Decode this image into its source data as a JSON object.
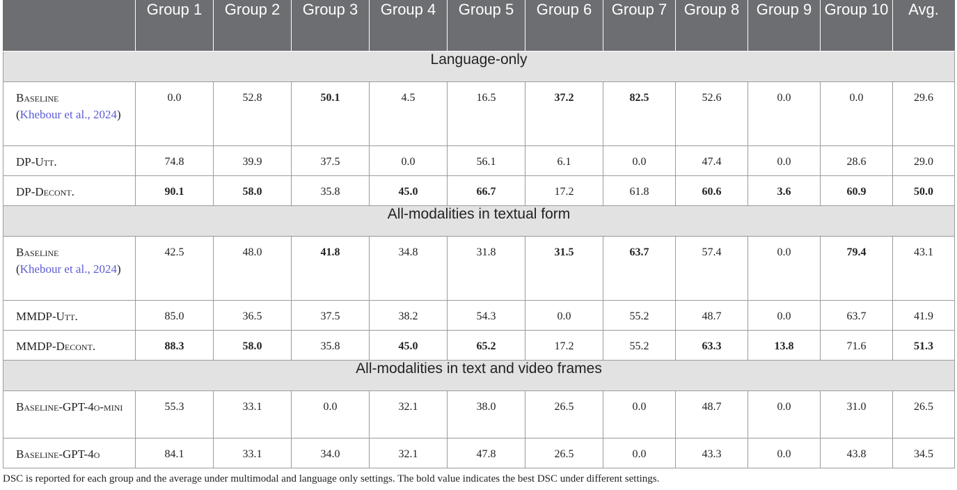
{
  "headers": [
    "",
    "Group 1",
    "Group 2",
    "Group 3",
    "Group 4",
    "Group 5",
    "Group 6",
    "Group 7",
    "Group 8",
    "Group 9",
    "Group 10",
    "Avg."
  ],
  "sections": [
    {
      "title": "Language-only",
      "rows": [
        {
          "label": "Baseline",
          "cite": "Khebour et al., 2024",
          "values": [
            "0.0",
            "52.8",
            "50.1",
            "4.5",
            "16.5",
            "37.2",
            "82.5",
            "52.6",
            "0.0",
            "0.0",
            "29.6"
          ],
          "bold": [
            false,
            false,
            true,
            false,
            false,
            true,
            true,
            false,
            false,
            false,
            false
          ]
        },
        {
          "label": "DP-Utt.",
          "values": [
            "74.8",
            "39.9",
            "37.5",
            "0.0",
            "56.1",
            "6.1",
            "0.0",
            "47.4",
            "0.0",
            "28.6",
            "29.0"
          ],
          "bold": [
            false,
            false,
            false,
            false,
            false,
            false,
            false,
            false,
            false,
            false,
            false
          ]
        },
        {
          "label": "DP-Decont.",
          "values": [
            "90.1",
            "58.0",
            "35.8",
            "45.0",
            "66.7",
            "17.2",
            "61.8",
            "60.6",
            "3.6",
            "60.9",
            "50.0"
          ],
          "bold": [
            true,
            true,
            false,
            true,
            true,
            false,
            false,
            true,
            true,
            true,
            true
          ]
        }
      ]
    },
    {
      "title": "All-modalities in textual form",
      "rows": [
        {
          "label": "Baseline",
          "cite": "Khebour et al., 2024",
          "values": [
            "42.5",
            "48.0",
            "41.8",
            "34.8",
            "31.8",
            "31.5",
            "63.7",
            "57.4",
            "0.0",
            "79.4",
            "43.1"
          ],
          "bold": [
            false,
            false,
            true,
            false,
            false,
            true,
            true,
            false,
            false,
            true,
            false
          ]
        },
        {
          "label": "MMDP-Utt.",
          "values": [
            "85.0",
            "36.5",
            "37.5",
            "38.2",
            "54.3",
            "0.0",
            "55.2",
            "48.7",
            "0.0",
            "63.7",
            "41.9"
          ],
          "bold": [
            false,
            false,
            false,
            false,
            false,
            false,
            false,
            false,
            false,
            false,
            false
          ]
        },
        {
          "label": "MMDP-Decont.",
          "values": [
            "88.3",
            "58.0",
            "35.8",
            "45.0",
            "65.2",
            "17.2",
            "55.2",
            "63.3",
            "13.8",
            "71.6",
            "51.3"
          ],
          "bold": [
            true,
            true,
            false,
            true,
            true,
            false,
            false,
            true,
            true,
            false,
            true
          ]
        }
      ]
    },
    {
      "title": "All-modalities in text and video frames",
      "rows": [
        {
          "label": "Baseline-GPT-4o-mini",
          "values": [
            "55.3",
            "33.1",
            "0.0",
            "32.1",
            "38.0",
            "26.5",
            "0.0",
            "48.7",
            "0.0",
            "31.0",
            "26.5"
          ],
          "bold": [
            false,
            false,
            false,
            false,
            false,
            false,
            false,
            false,
            false,
            false,
            false
          ]
        },
        {
          "label": "Baseline-GPT-4o",
          "values": [
            "84.1",
            "33.1",
            "34.0",
            "32.1",
            "47.8",
            "26.5",
            "0.0",
            "43.3",
            "0.0",
            "43.8",
            "34.5"
          ],
          "bold": [
            false,
            false,
            false,
            false,
            false,
            false,
            false,
            false,
            false,
            false,
            false
          ]
        }
      ]
    }
  ],
  "footnote": "DSC is reported for each group and the average under multimodal and language only settings. The bold value indicates the best DSC under different settings."
}
